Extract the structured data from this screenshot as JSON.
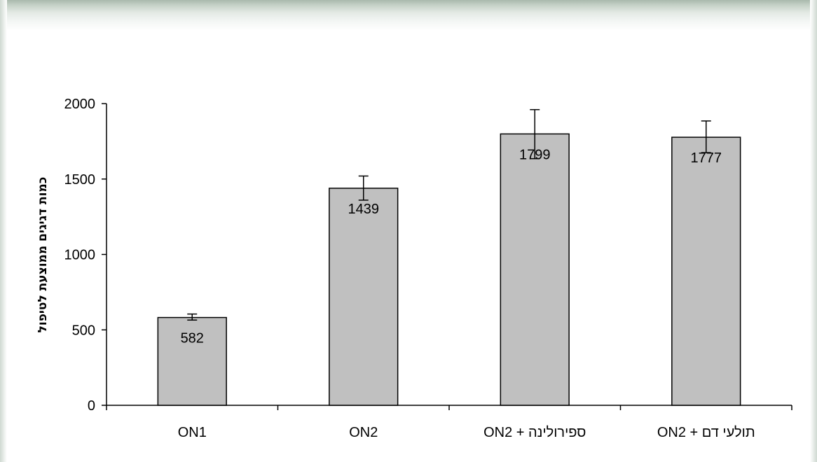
{
  "chart_data": {
    "type": "bar",
    "title": "",
    "xlabel": "",
    "ylabel": "כמות דגיגים ממוצעת לטיפול",
    "categories": [
      "ON1",
      "ON2",
      "ON2 + ספירולינה",
      "ON2 + תולעי דם"
    ],
    "values": [
      582,
      1439,
      1799,
      1777
    ],
    "error_high": [
      605,
      1520,
      1960,
      1885
    ],
    "error_low": [
      565,
      1360,
      1635,
      1675
    ],
    "data_labels": [
      "582",
      "1439",
      "1799",
      "1777"
    ],
    "ylim": [
      0,
      2000
    ],
    "yticks": [
      0,
      500,
      1000,
      1500,
      2000
    ],
    "ytick_labels": [
      "0",
      "500",
      "1000",
      "1500",
      "2000"
    ],
    "bar_color": "#c0c0c0",
    "grid": false,
    "legend": false
  }
}
